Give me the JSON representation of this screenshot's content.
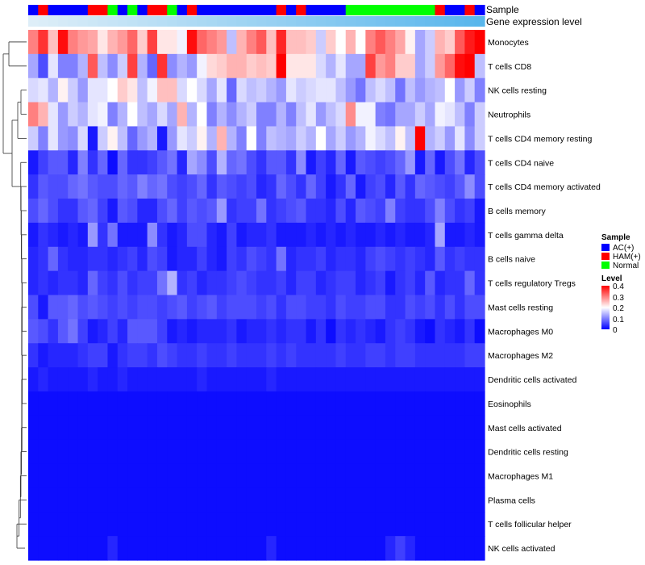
{
  "chart_data": {
    "type": "heatmap",
    "annotation_labels": {
      "sample": "Sample",
      "gene": "Gene expression level"
    },
    "sample_legend": {
      "title": "Sample",
      "entries": [
        {
          "name": "AC(+)",
          "color": "#0000ff"
        },
        {
          "name": "HAM(+)",
          "color": "#ff0000"
        },
        {
          "name": "Normal",
          "color": "#00ff00"
        }
      ]
    },
    "level_legend": {
      "title": "Level",
      "min": 0,
      "max": 0.4,
      "ticks": [
        "0",
        "0.1",
        "0.2",
        "0.3",
        "0.4"
      ],
      "colors": {
        "low": "#0000ff",
        "mid": "#ffffff",
        "high": "#ff0000",
        "mid_value": 0.2
      }
    },
    "sample_groups": [
      "AC(+)",
      "HAM(+)",
      "AC(+)",
      "AC(+)",
      "AC(+)",
      "AC(+)",
      "HAM(+)",
      "HAM(+)",
      "Normal",
      "AC(+)",
      "Normal",
      "AC(+)",
      "HAM(+)",
      "HAM(+)",
      "Normal",
      "AC(+)",
      "HAM(+)",
      "AC(+)",
      "AC(+)",
      "AC(+)",
      "AC(+)",
      "AC(+)",
      "AC(+)",
      "AC(+)",
      "AC(+)",
      "HAM(+)",
      "AC(+)",
      "HAM(+)",
      "AC(+)",
      "AC(+)",
      "AC(+)",
      "AC(+)",
      "Normal",
      "Normal",
      "Normal",
      "Normal",
      "Normal",
      "Normal",
      "Normal",
      "Normal",
      "Normal",
      "HAM(+)",
      "AC(+)",
      "AC(+)",
      "HAM(+)",
      "AC(+)"
    ],
    "rows": [
      "Monocytes",
      "T cells CD8",
      "NK cells resting",
      "Neutrophils",
      "T cells CD4 memory resting",
      "T cells CD4 naive",
      "T cells CD4 memory activated",
      "B cells memory",
      "T cells gamma delta",
      "B cells naive",
      "T cells regulatory  Tregs",
      "Mast cells resting",
      "Macrophages M0",
      "Macrophages M2",
      "Dendritic cells activated",
      "Eosinophils",
      "Mast cells activated",
      "Dendritic cells resting",
      "Macrophages M1",
      "Plasma cells",
      "T cells follicular helper",
      "NK cells activated"
    ],
    "values": [
      [
        0.3,
        0.36,
        0.25,
        0.39,
        0.3,
        0.28,
        0.27,
        0.22,
        0.26,
        0.28,
        0.32,
        0.24,
        0.35,
        0.22,
        0.22,
        0.19,
        0.39,
        0.32,
        0.3,
        0.28,
        0.15,
        0.26,
        0.3,
        0.33,
        0.25,
        0.37,
        0.25,
        0.25,
        0.24,
        0.16,
        0.24,
        0.2,
        0.26,
        0.2,
        0.3,
        0.33,
        0.3,
        0.27,
        0.21,
        0.13,
        0.16,
        0.26,
        0.24,
        0.33,
        0.38,
        0.4
      ],
      [
        0.13,
        0.06,
        0.18,
        0.1,
        0.1,
        0.14,
        0.33,
        0.15,
        0.11,
        0.16,
        0.35,
        0.14,
        0.08,
        0.36,
        0.11,
        0.14,
        0.12,
        0.19,
        0.23,
        0.24,
        0.26,
        0.26,
        0.24,
        0.25,
        0.24,
        0.4,
        0.22,
        0.22,
        0.22,
        0.17,
        0.14,
        0.18,
        0.13,
        0.13,
        0.35,
        0.28,
        0.3,
        0.24,
        0.24,
        0.13,
        0.16,
        0.28,
        0.32,
        0.39,
        0.4,
        0.15
      ],
      [
        0.17,
        0.18,
        0.14,
        0.21,
        0.16,
        0.12,
        0.18,
        0.18,
        0.2,
        0.24,
        0.22,
        0.15,
        0.19,
        0.25,
        0.25,
        0.17,
        0.2,
        0.17,
        0.13,
        0.18,
        0.08,
        0.17,
        0.15,
        0.16,
        0.14,
        0.12,
        0.18,
        0.16,
        0.17,
        0.18,
        0.18,
        0.15,
        0.12,
        0.09,
        0.15,
        0.17,
        0.15,
        0.09,
        0.15,
        0.12,
        0.14,
        0.15,
        0.2,
        0.12,
        0.16,
        0.1
      ],
      [
        0.3,
        0.26,
        0.18,
        0.12,
        0.16,
        0.14,
        0.18,
        0.19,
        0.1,
        0.14,
        0.2,
        0.15,
        0.13,
        0.17,
        0.13,
        0.26,
        0.14,
        0.2,
        0.1,
        0.14,
        0.11,
        0.14,
        0.16,
        0.1,
        0.1,
        0.14,
        0.1,
        0.15,
        0.18,
        0.12,
        0.15,
        0.17,
        0.29,
        0.19,
        0.19,
        0.1,
        0.09,
        0.13,
        0.13,
        0.16,
        0.13,
        0.19,
        0.18,
        0.15,
        0.1,
        0.16
      ],
      [
        0.16,
        0.1,
        0.18,
        0.12,
        0.11,
        0.17,
        0.02,
        0.16,
        0.21,
        0.15,
        0.08,
        0.12,
        0.14,
        0.02,
        0.12,
        0.18,
        0.16,
        0.21,
        0.14,
        0.26,
        0.14,
        0.1,
        0.2,
        0.1,
        0.15,
        0.14,
        0.13,
        0.16,
        0.14,
        0.2,
        0.13,
        0.16,
        0.12,
        0.14,
        0.19,
        0.17,
        0.15,
        0.21,
        0.15,
        0.4,
        0.14,
        0.16,
        0.12,
        0.18,
        0.11,
        0.16
      ],
      [
        0.02,
        0.05,
        0.07,
        0.07,
        0.03,
        0.1,
        0.04,
        0.08,
        0.01,
        0.08,
        0.04,
        0.04,
        0.05,
        0.07,
        0.09,
        0.03,
        0.13,
        0.11,
        0.06,
        0.14,
        0.08,
        0.09,
        0.06,
        0.04,
        0.07,
        0.07,
        0.04,
        0.11,
        0.02,
        0.05,
        0.03,
        0.08,
        0.02,
        0.07,
        0.06,
        0.05,
        0.06,
        0.08,
        0.12,
        0.02,
        0.08,
        0.02,
        0.06,
        0.09,
        0.03,
        0.06
      ],
      [
        0.04,
        0.07,
        0.06,
        0.06,
        0.08,
        0.09,
        0.07,
        0.06,
        0.06,
        0.08,
        0.07,
        0.1,
        0.08,
        0.09,
        0.06,
        0.05,
        0.06,
        0.08,
        0.04,
        0.07,
        0.06,
        0.05,
        0.06,
        0.03,
        0.04,
        0.08,
        0.06,
        0.04,
        0.08,
        0.05,
        0.02,
        0.04,
        0.08,
        0.02,
        0.05,
        0.06,
        0.03,
        0.07,
        0.04,
        0.08,
        0.07,
        0.06,
        0.05,
        0.07,
        0.11,
        0.06
      ],
      [
        0.06,
        0.08,
        0.06,
        0.04,
        0.04,
        0.07,
        0.08,
        0.05,
        0.02,
        0.07,
        0.06,
        0.03,
        0.03,
        0.06,
        0.08,
        0.05,
        0.07,
        0.06,
        0.07,
        0.12,
        0.04,
        0.05,
        0.05,
        0.09,
        0.04,
        0.05,
        0.06,
        0.07,
        0.04,
        0.04,
        0.03,
        0.06,
        0.03,
        0.07,
        0.06,
        0.05,
        0.1,
        0.05,
        0.04,
        0.04,
        0.06,
        0.1,
        0.06,
        0.04,
        0.05,
        0.02
      ],
      [
        0.02,
        0.04,
        0.03,
        0.02,
        0.03,
        0.02,
        0.12,
        0.04,
        0.09,
        0.02,
        0.02,
        0.02,
        0.11,
        0.04,
        0.02,
        0.03,
        0.06,
        0.06,
        0.03,
        0.02,
        0.05,
        0.02,
        0.03,
        0.03,
        0.04,
        0.02,
        0.02,
        0.02,
        0.03,
        0.02,
        0.03,
        0.02,
        0.03,
        0.02,
        0.02,
        0.03,
        0.02,
        0.03,
        0.02,
        0.02,
        0.03,
        0.13,
        0.02,
        0.02,
        0.03,
        0.02
      ],
      [
        0.03,
        0.04,
        0.08,
        0.04,
        0.03,
        0.03,
        0.04,
        0.04,
        0.03,
        0.04,
        0.05,
        0.03,
        0.06,
        0.05,
        0.02,
        0.03,
        0.03,
        0.05,
        0.03,
        0.02,
        0.05,
        0.04,
        0.06,
        0.05,
        0.04,
        0.09,
        0.03,
        0.04,
        0.04,
        0.05,
        0.03,
        0.04,
        0.04,
        0.03,
        0.05,
        0.06,
        0.05,
        0.04,
        0.05,
        0.04,
        0.03,
        0.07,
        0.04,
        0.05,
        0.04,
        0.04
      ],
      [
        0.03,
        0.04,
        0.03,
        0.04,
        0.04,
        0.03,
        0.08,
        0.05,
        0.04,
        0.06,
        0.04,
        0.05,
        0.05,
        0.09,
        0.14,
        0.04,
        0.05,
        0.03,
        0.04,
        0.04,
        0.05,
        0.06,
        0.05,
        0.04,
        0.04,
        0.05,
        0.03,
        0.05,
        0.05,
        0.03,
        0.04,
        0.05,
        0.05,
        0.03,
        0.04,
        0.05,
        0.02,
        0.04,
        0.05,
        0.03,
        0.07,
        0.03,
        0.04,
        0.04,
        0.08,
        0.04
      ],
      [
        0.06,
        0.02,
        0.07,
        0.07,
        0.08,
        0.06,
        0.07,
        0.06,
        0.05,
        0.06,
        0.05,
        0.06,
        0.06,
        0.05,
        0.06,
        0.07,
        0.05,
        0.06,
        0.07,
        0.05,
        0.06,
        0.06,
        0.06,
        0.05,
        0.06,
        0.04,
        0.06,
        0.06,
        0.05,
        0.05,
        0.04,
        0.06,
        0.05,
        0.05,
        0.06,
        0.06,
        0.04,
        0.04,
        0.06,
        0.05,
        0.06,
        0.04,
        0.06,
        0.04,
        0.06,
        0.06
      ],
      [
        0.07,
        0.06,
        0.04,
        0.07,
        0.09,
        0.05,
        0.02,
        0.03,
        0.05,
        0.03,
        0.07,
        0.07,
        0.07,
        0.05,
        0.02,
        0.03,
        0.02,
        0.03,
        0.03,
        0.03,
        0.04,
        0.02,
        0.03,
        0.03,
        0.04,
        0.03,
        0.04,
        0.04,
        0.02,
        0.04,
        0.01,
        0.04,
        0.03,
        0.04,
        0.03,
        0.02,
        0.04,
        0.05,
        0.04,
        0.02,
        0.01,
        0.04,
        0.03,
        0.02,
        0.04,
        0.01
      ],
      [
        0.04,
        0.02,
        0.03,
        0.03,
        0.03,
        0.04,
        0.05,
        0.05,
        0.02,
        0.04,
        0.05,
        0.05,
        0.04,
        0.06,
        0.05,
        0.04,
        0.04,
        0.05,
        0.04,
        0.04,
        0.05,
        0.04,
        0.04,
        0.04,
        0.05,
        0.04,
        0.05,
        0.04,
        0.04,
        0.04,
        0.04,
        0.05,
        0.04,
        0.04,
        0.05,
        0.05,
        0.04,
        0.05,
        0.05,
        0.04,
        0.04,
        0.04,
        0.04,
        0.04,
        0.05,
        0.05
      ],
      [
        0.02,
        0.03,
        0.02,
        0.02,
        0.02,
        0.02,
        0.03,
        0.02,
        0.02,
        0.03,
        0.02,
        0.02,
        0.02,
        0.02,
        0.02,
        0.02,
        0.02,
        0.03,
        0.02,
        0.02,
        0.02,
        0.02,
        0.02,
        0.02,
        0.03,
        0.02,
        0.02,
        0.02,
        0.02,
        0.02,
        0.02,
        0.02,
        0.02,
        0.02,
        0.02,
        0.02,
        0.02,
        0.02,
        0.02,
        0.02,
        0.02,
        0.02,
        0.02,
        0.02,
        0.02,
        0.02
      ],
      [
        0.01,
        0.01,
        0.01,
        0.01,
        0.01,
        0.01,
        0.01,
        0.01,
        0.01,
        0.01,
        0.01,
        0.01,
        0.01,
        0.01,
        0.01,
        0.01,
        0.01,
        0.01,
        0.01,
        0.01,
        0.01,
        0.01,
        0.01,
        0.01,
        0.01,
        0.01,
        0.01,
        0.01,
        0.01,
        0.01,
        0.01,
        0.01,
        0.01,
        0.01,
        0.01,
        0.01,
        0.01,
        0.01,
        0.01,
        0.01,
        0.01,
        0.01,
        0.01,
        0.01,
        0.01,
        0.01
      ],
      [
        0.01,
        0.01,
        0.01,
        0.01,
        0.01,
        0.01,
        0.01,
        0.01,
        0.01,
        0.01,
        0.01,
        0.01,
        0.01,
        0.01,
        0.01,
        0.01,
        0.01,
        0.01,
        0.01,
        0.01,
        0.01,
        0.01,
        0.01,
        0.01,
        0.01,
        0.01,
        0.01,
        0.01,
        0.01,
        0.01,
        0.01,
        0.01,
        0.01,
        0.01,
        0.01,
        0.01,
        0.01,
        0.01,
        0.01,
        0.01,
        0.01,
        0.01,
        0.01,
        0.01,
        0.01,
        0.01
      ],
      [
        0.01,
        0.01,
        0.01,
        0.01,
        0.01,
        0.01,
        0.01,
        0.01,
        0.01,
        0.01,
        0.01,
        0.01,
        0.01,
        0.01,
        0.01,
        0.01,
        0.01,
        0.01,
        0.01,
        0.01,
        0.01,
        0.01,
        0.01,
        0.01,
        0.01,
        0.01,
        0.01,
        0.01,
        0.01,
        0.01,
        0.01,
        0.01,
        0.01,
        0.01,
        0.01,
        0.01,
        0.01,
        0.01,
        0.01,
        0.01,
        0.01,
        0.01,
        0.01,
        0.01,
        0.01,
        0.01
      ],
      [
        0.01,
        0.01,
        0.01,
        0.01,
        0.01,
        0.01,
        0.01,
        0.01,
        0.01,
        0.01,
        0.01,
        0.01,
        0.01,
        0.01,
        0.01,
        0.01,
        0.01,
        0.01,
        0.01,
        0.01,
        0.01,
        0.01,
        0.01,
        0.01,
        0.01,
        0.01,
        0.01,
        0.01,
        0.01,
        0.01,
        0.01,
        0.01,
        0.01,
        0.01,
        0.01,
        0.01,
        0.01,
        0.01,
        0.01,
        0.01,
        0.01,
        0.01,
        0.01,
        0.01,
        0.01,
        0.01
      ],
      [
        0.01,
        0.01,
        0.01,
        0.01,
        0.01,
        0.01,
        0.01,
        0.01,
        0.01,
        0.01,
        0.01,
        0.01,
        0.01,
        0.01,
        0.01,
        0.01,
        0.01,
        0.01,
        0.01,
        0.01,
        0.01,
        0.01,
        0.01,
        0.01,
        0.01,
        0.01,
        0.01,
        0.01,
        0.01,
        0.01,
        0.01,
        0.01,
        0.01,
        0.01,
        0.01,
        0.01,
        0.01,
        0.01,
        0.01,
        0.01,
        0.01,
        0.01,
        0.01,
        0.01,
        0.01,
        0.01
      ],
      [
        0.01,
        0.01,
        0.01,
        0.01,
        0.01,
        0.01,
        0.01,
        0.01,
        0.01,
        0.01,
        0.01,
        0.01,
        0.01,
        0.01,
        0.01,
        0.01,
        0.01,
        0.01,
        0.01,
        0.01,
        0.01,
        0.01,
        0.01,
        0.01,
        0.01,
        0.01,
        0.01,
        0.01,
        0.01,
        0.01,
        0.01,
        0.01,
        0.01,
        0.01,
        0.01,
        0.01,
        0.01,
        0.01,
        0.01,
        0.01,
        0.01,
        0.01,
        0.01,
        0.01,
        0.01,
        0.01
      ],
      [
        0.01,
        0.01,
        0.01,
        0.01,
        0.01,
        0.01,
        0.01,
        0.01,
        0.03,
        0.01,
        0.01,
        0.01,
        0.01,
        0.01,
        0.01,
        0.01,
        0.01,
        0.01,
        0.01,
        0.01,
        0.01,
        0.01,
        0.01,
        0.01,
        0.03,
        0.01,
        0.01,
        0.01,
        0.01,
        0.01,
        0.01,
        0.01,
        0.01,
        0.01,
        0.01,
        0.01,
        0.03,
        0.05,
        0.03,
        0.01,
        0.01,
        0.01,
        0.01,
        0.01,
        0.01,
        0.01
      ]
    ]
  }
}
